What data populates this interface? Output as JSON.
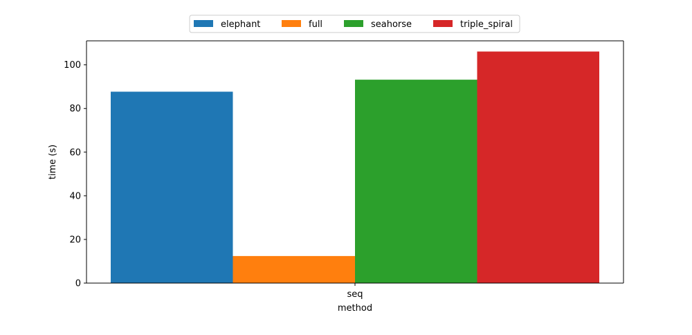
{
  "chart_data": {
    "type": "bar",
    "title": "",
    "xlabel": "method",
    "ylabel": "time (s)",
    "categories": [
      "seq"
    ],
    "ylim": [
      0,
      111
    ],
    "yticks": [
      0,
      20,
      40,
      60,
      80,
      100
    ],
    "grid": false,
    "legend_position": "top-center",
    "series": [
      {
        "name": "elephant",
        "values": [
          87.7
        ],
        "color": "#1f77b4"
      },
      {
        "name": "full",
        "values": [
          12.4
        ],
        "color": "#ff7f0e"
      },
      {
        "name": "seahorse",
        "values": [
          93.2
        ],
        "color": "#2ca02c"
      },
      {
        "name": "triple_spiral",
        "values": [
          106.1
        ],
        "color": "#d62728"
      }
    ]
  }
}
